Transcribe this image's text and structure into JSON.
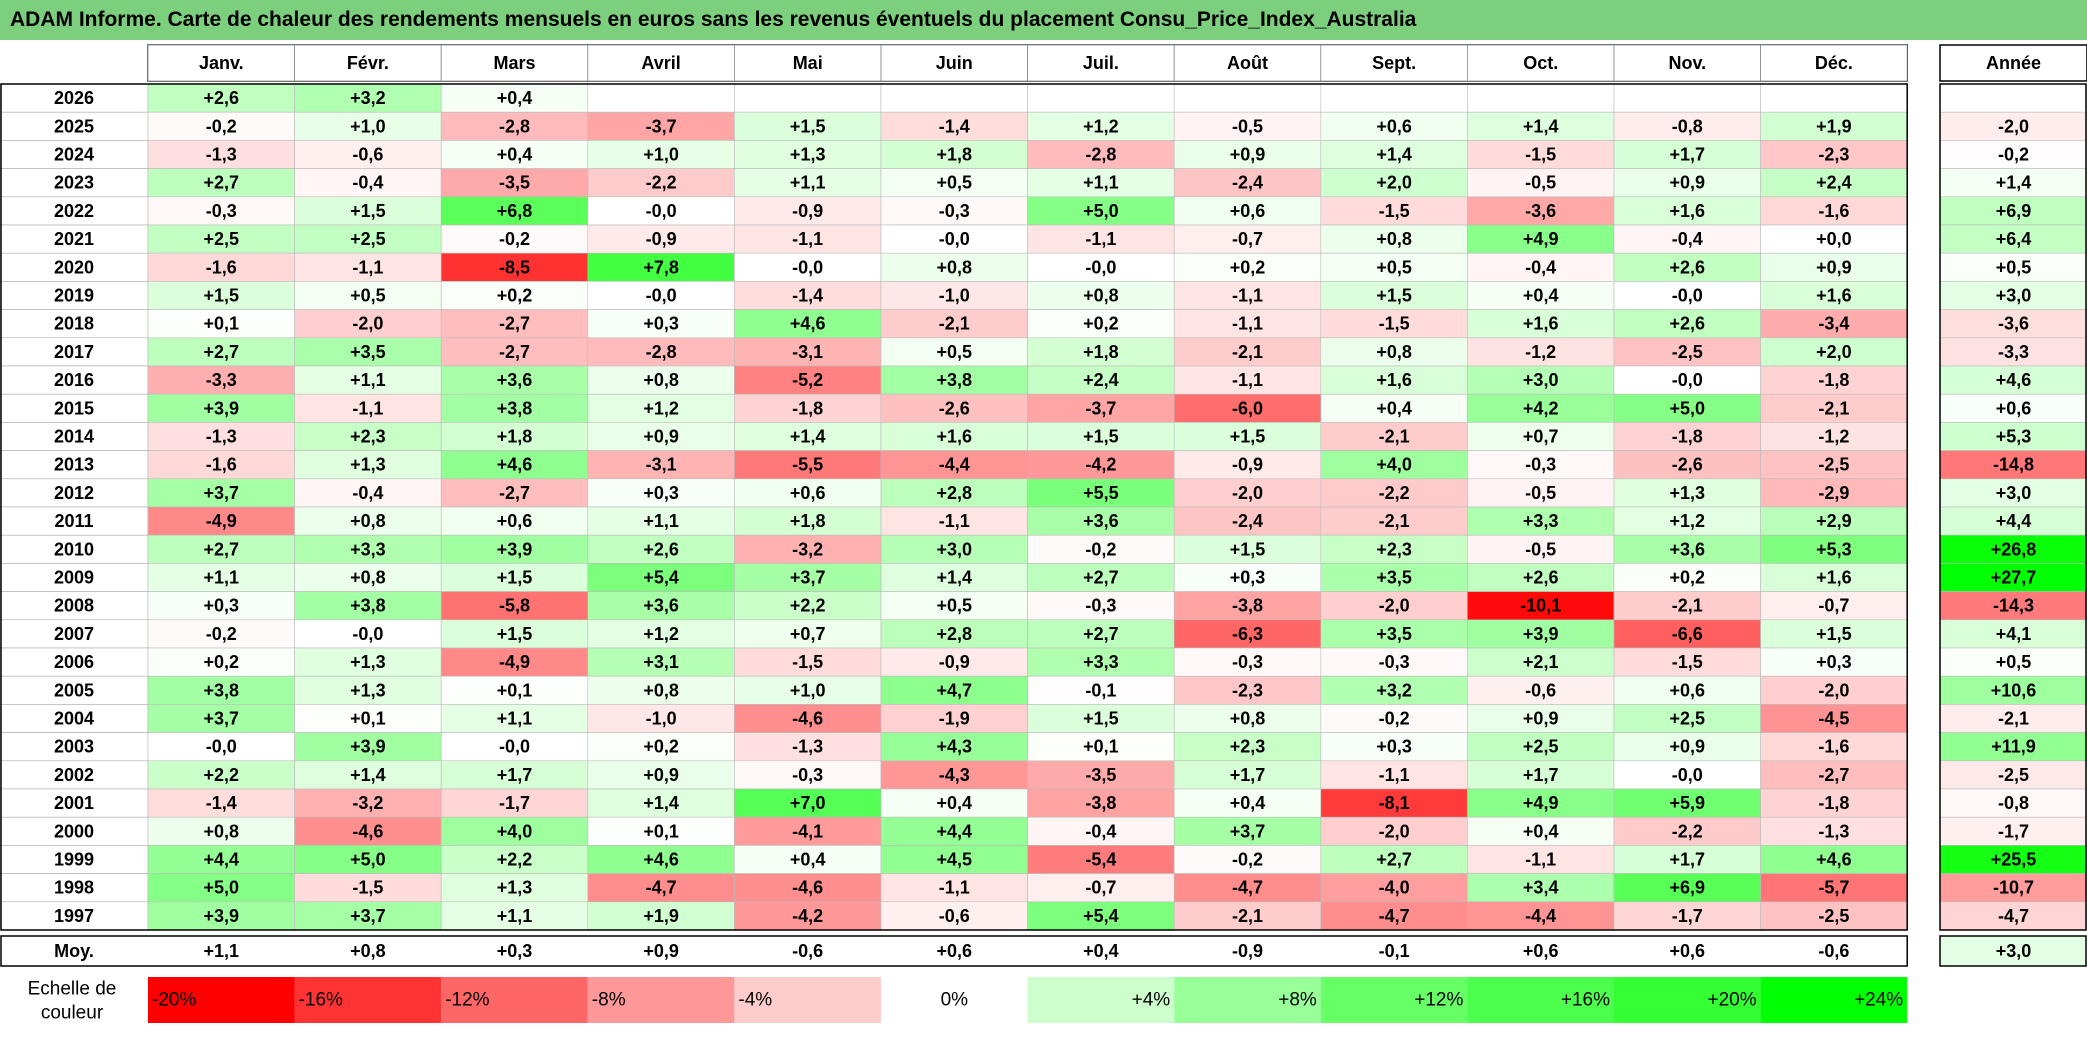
{
  "title": "ADAM Informe. Carte de chaleur des rendements mensuels en euros sans les revenus éventuels du placement Consu_Price_Index_Australia",
  "chart_data": {
    "type": "heatmap",
    "title": "ADAM Informe. Carte de chaleur des rendements mensuels en euros sans les revenus éventuels du placement Consu_Price_Index_Australia",
    "months": [
      "Janv.",
      "Févr.",
      "Mars",
      "Avril",
      "Mai",
      "Juin",
      "Juil.",
      "Août",
      "Sept.",
      "Oct.",
      "Nov.",
      "Déc."
    ],
    "year_header": "Année",
    "rows": [
      {
        "year": "2026",
        "values": [
          "+2,6",
          "+3,2",
          "+0,4",
          "",
          "",
          "",
          "",
          "",
          "",
          "",
          "",
          ""
        ],
        "annual": ""
      },
      {
        "year": "2025",
        "values": [
          "-0,2",
          "+1,0",
          "-2,8",
          "-3,7",
          "+1,5",
          "-1,4",
          "+1,2",
          "-0,5",
          "+0,6",
          "+1,4",
          "-0,8",
          "+1,9"
        ],
        "annual": "-2,0"
      },
      {
        "year": "2024",
        "values": [
          "-1,3",
          "-0,6",
          "+0,4",
          "+1,0",
          "+1,3",
          "+1,8",
          "-2,8",
          "+0,9",
          "+1,4",
          "-1,5",
          "+1,7",
          "-2,3"
        ],
        "annual": "-0,2"
      },
      {
        "year": "2023",
        "values": [
          "+2,7",
          "-0,4",
          "-3,5",
          "-2,2",
          "+1,1",
          "+0,5",
          "+1,1",
          "-2,4",
          "+2,0",
          "-0,5",
          "+0,9",
          "+2,4"
        ],
        "annual": "+1,4"
      },
      {
        "year": "2022",
        "values": [
          "-0,3",
          "+1,5",
          "+6,8",
          "-0,0",
          "-0,9",
          "-0,3",
          "+5,0",
          "+0,6",
          "-1,5",
          "-3,6",
          "+1,6",
          "-1,6"
        ],
        "annual": "+6,9"
      },
      {
        "year": "2021",
        "values": [
          "+2,5",
          "+2,5",
          "-0,2",
          "-0,9",
          "-1,1",
          "-0,0",
          "-1,1",
          "-0,7",
          "+0,8",
          "+4,9",
          "-0,4",
          "+0,0"
        ],
        "annual": "+6,4"
      },
      {
        "year": "2020",
        "values": [
          "-1,6",
          "-1,1",
          "-8,5",
          "+7,8",
          "-0,0",
          "+0,8",
          "-0,0",
          "+0,2",
          "+0,5",
          "-0,4",
          "+2,6",
          "+0,9"
        ],
        "annual": "+0,5"
      },
      {
        "year": "2019",
        "values": [
          "+1,5",
          "+0,5",
          "+0,2",
          "-0,0",
          "-1,4",
          "-1,0",
          "+0,8",
          "-1,1",
          "+1,5",
          "+0,4",
          "-0,0",
          "+1,6"
        ],
        "annual": "+3,0"
      },
      {
        "year": "2018",
        "values": [
          "+0,1",
          "-2,0",
          "-2,7",
          "+0,3",
          "+4,6",
          "-2,1",
          "+0,2",
          "-1,1",
          "-1,5",
          "+1,6",
          "+2,6",
          "-3,4"
        ],
        "annual": "-3,6"
      },
      {
        "year": "2017",
        "values": [
          "+2,7",
          "+3,5",
          "-2,7",
          "-2,8",
          "-3,1",
          "+0,5",
          "+1,8",
          "-2,1",
          "+0,8",
          "-1,2",
          "-2,5",
          "+2,0"
        ],
        "annual": "-3,3"
      },
      {
        "year": "2016",
        "values": [
          "-3,3",
          "+1,1",
          "+3,6",
          "+0,8",
          "-5,2",
          "+3,8",
          "+2,4",
          "-1,1",
          "+1,6",
          "+3,0",
          "-0,0",
          "-1,8"
        ],
        "annual": "+4,6"
      },
      {
        "year": "2015",
        "values": [
          "+3,9",
          "-1,1",
          "+3,8",
          "+1,2",
          "-1,8",
          "-2,6",
          "-3,7",
          "-6,0",
          "+0,4",
          "+4,2",
          "+5,0",
          "-2,1"
        ],
        "annual": "+0,6"
      },
      {
        "year": "2014",
        "values": [
          "-1,3",
          "+2,3",
          "+1,8",
          "+0,9",
          "+1,4",
          "+1,6",
          "+1,5",
          "+1,5",
          "-2,1",
          "+0,7",
          "-1,8",
          "-1,2"
        ],
        "annual": "+5,3"
      },
      {
        "year": "2013",
        "values": [
          "-1,6",
          "+1,3",
          "+4,6",
          "-3,1",
          "-5,5",
          "-4,4",
          "-4,2",
          "-0,9",
          "+4,0",
          "-0,3",
          "-2,6",
          "-2,5"
        ],
        "annual": "-14,8"
      },
      {
        "year": "2012",
        "values": [
          "+3,7",
          "-0,4",
          "-2,7",
          "+0,3",
          "+0,6",
          "+2,8",
          "+5,5",
          "-2,0",
          "-2,2",
          "-0,5",
          "+1,3",
          "-2,9"
        ],
        "annual": "+3,0"
      },
      {
        "year": "2011",
        "values": [
          "-4,9",
          "+0,8",
          "+0,6",
          "+1,1",
          "+1,8",
          "-1,1",
          "+3,6",
          "-2,4",
          "-2,1",
          "+3,3",
          "+1,2",
          "+2,9"
        ],
        "annual": "+4,4"
      },
      {
        "year": "2010",
        "values": [
          "+2,7",
          "+3,3",
          "+3,9",
          "+2,6",
          "-3,2",
          "+3,0",
          "-0,2",
          "+1,5",
          "+2,3",
          "-0,5",
          "+3,6",
          "+5,3"
        ],
        "annual": "+26,8"
      },
      {
        "year": "2009",
        "values": [
          "+1,1",
          "+0,8",
          "+1,5",
          "+5,4",
          "+3,7",
          "+1,4",
          "+2,7",
          "+0,3",
          "+3,5",
          "+2,6",
          "+0,2",
          "+1,6"
        ],
        "annual": "+27,7"
      },
      {
        "year": "2008",
        "values": [
          "+0,3",
          "+3,8",
          "-5,8",
          "+3,6",
          "+2,2",
          "+0,5",
          "-0,3",
          "-3,8",
          "-2,0",
          "-10,1",
          "-2,1",
          "-0,7"
        ],
        "annual": "-14,3"
      },
      {
        "year": "2007",
        "values": [
          "-0,2",
          "-0,0",
          "+1,5",
          "+1,2",
          "+0,7",
          "+2,8",
          "+2,7",
          "-6,3",
          "+3,5",
          "+3,9",
          "-6,6",
          "+1,5"
        ],
        "annual": "+4,1"
      },
      {
        "year": "2006",
        "values": [
          "+0,2",
          "+1,3",
          "-4,9",
          "+3,1",
          "-1,5",
          "-0,9",
          "+3,3",
          "-0,3",
          "-0,3",
          "+2,1",
          "-1,5",
          "+0,3"
        ],
        "annual": "+0,5"
      },
      {
        "year": "2005",
        "values": [
          "+3,8",
          "+1,3",
          "+0,1",
          "+0,8",
          "+1,0",
          "+4,7",
          "-0,1",
          "-2,3",
          "+3,2",
          "-0,6",
          "+0,6",
          "-2,0"
        ],
        "annual": "+10,6"
      },
      {
        "year": "2004",
        "values": [
          "+3,7",
          "+0,1",
          "+1,1",
          "-1,0",
          "-4,6",
          "-1,9",
          "+1,5",
          "+0,8",
          "-0,2",
          "+0,9",
          "+2,5",
          "-4,5"
        ],
        "annual": "-2,1"
      },
      {
        "year": "2003",
        "values": [
          "-0,0",
          "+3,9",
          "-0,0",
          "+0,2",
          "-1,3",
          "+4,3",
          "+0,1",
          "+2,3",
          "+0,3",
          "+2,5",
          "+0,9",
          "-1,6"
        ],
        "annual": "+11,9"
      },
      {
        "year": "2002",
        "values": [
          "+2,2",
          "+1,4",
          "+1,7",
          "+0,9",
          "-0,3",
          "-4,3",
          "-3,5",
          "+1,7",
          "-1,1",
          "+1,7",
          "-0,0",
          "-2,7"
        ],
        "annual": "-2,5"
      },
      {
        "year": "2001",
        "values": [
          "-1,4",
          "-3,2",
          "-1,7",
          "+1,4",
          "+7,0",
          "+0,4",
          "-3,8",
          "+0,4",
          "-8,1",
          "+4,9",
          "+5,9",
          "-1,8"
        ],
        "annual": "-0,8"
      },
      {
        "year": "2000",
        "values": [
          "+0,8",
          "-4,6",
          "+4,0",
          "+0,1",
          "-4,1",
          "+4,4",
          "-0,4",
          "+3,7",
          "-2,0",
          "+0,4",
          "-2,2",
          "-1,3"
        ],
        "annual": "-1,7"
      },
      {
        "year": "1999",
        "values": [
          "+4,4",
          "+5,0",
          "+2,2",
          "+4,6",
          "+0,4",
          "+4,5",
          "-5,4",
          "-0,2",
          "+2,7",
          "-1,1",
          "+1,7",
          "+4,6"
        ],
        "annual": "+25,5"
      },
      {
        "year": "1998",
        "values": [
          "+5,0",
          "-1,5",
          "+1,3",
          "-4,7",
          "-4,6",
          "-1,1",
          "-0,7",
          "-4,7",
          "-4,0",
          "+3,4",
          "+6,9",
          "-5,7"
        ],
        "annual": "-10,7"
      },
      {
        "year": "1997",
        "values": [
          "+3,9",
          "+3,7",
          "+1,1",
          "+1,9",
          "-4,2",
          "-0,6",
          "+5,4",
          "-2,1",
          "-4,7",
          "-4,4",
          "-1,7",
          "-2,5"
        ],
        "annual": "-4,7"
      }
    ],
    "average": {
      "label": "Moy.",
      "values": [
        "+1,1",
        "+0,8",
        "+0,3",
        "+0,9",
        "-0,6",
        "+0,6",
        "+0,4",
        "-0,9",
        "-0,1",
        "+0,6",
        "+0,6",
        "-0,6"
      ],
      "annual": "+3,0"
    },
    "scale": {
      "label_line1": "Echelle de",
      "label_line2": "couleur",
      "steps": [
        {
          "label": "-20%",
          "value": -20,
          "color": "#ff0000"
        },
        {
          "label": "-16%",
          "value": -16,
          "color": "#ff3333"
        },
        {
          "label": "-12%",
          "value": -12,
          "color": "#ff6666"
        },
        {
          "label": "-8%",
          "value": -8,
          "color": "#ff9999"
        },
        {
          "label": "-4%",
          "value": -4,
          "color": "#ffcccc"
        },
        {
          "label": "0%",
          "value": 0,
          "color": "#ffffff"
        },
        {
          "label": "+4%",
          "value": 4,
          "color": "#ccffcc"
        },
        {
          "label": "+8%",
          "value": 8,
          "color": "#99ff99"
        },
        {
          "label": "+12%",
          "value": 12,
          "color": "#66ff66"
        },
        {
          "label": "+16%",
          "value": 16,
          "color": "#4dff4d"
        },
        {
          "label": "+20%",
          "value": 20,
          "color": "#33ff33"
        },
        {
          "label": "+24%",
          "value": 24,
          "color": "#00ff00"
        }
      ]
    }
  },
  "colors": {
    "title_bg": "#7ccf7c",
    "negative": "#ff0000",
    "positive": "#00ff00",
    "neutral": "#ffffff"
  }
}
